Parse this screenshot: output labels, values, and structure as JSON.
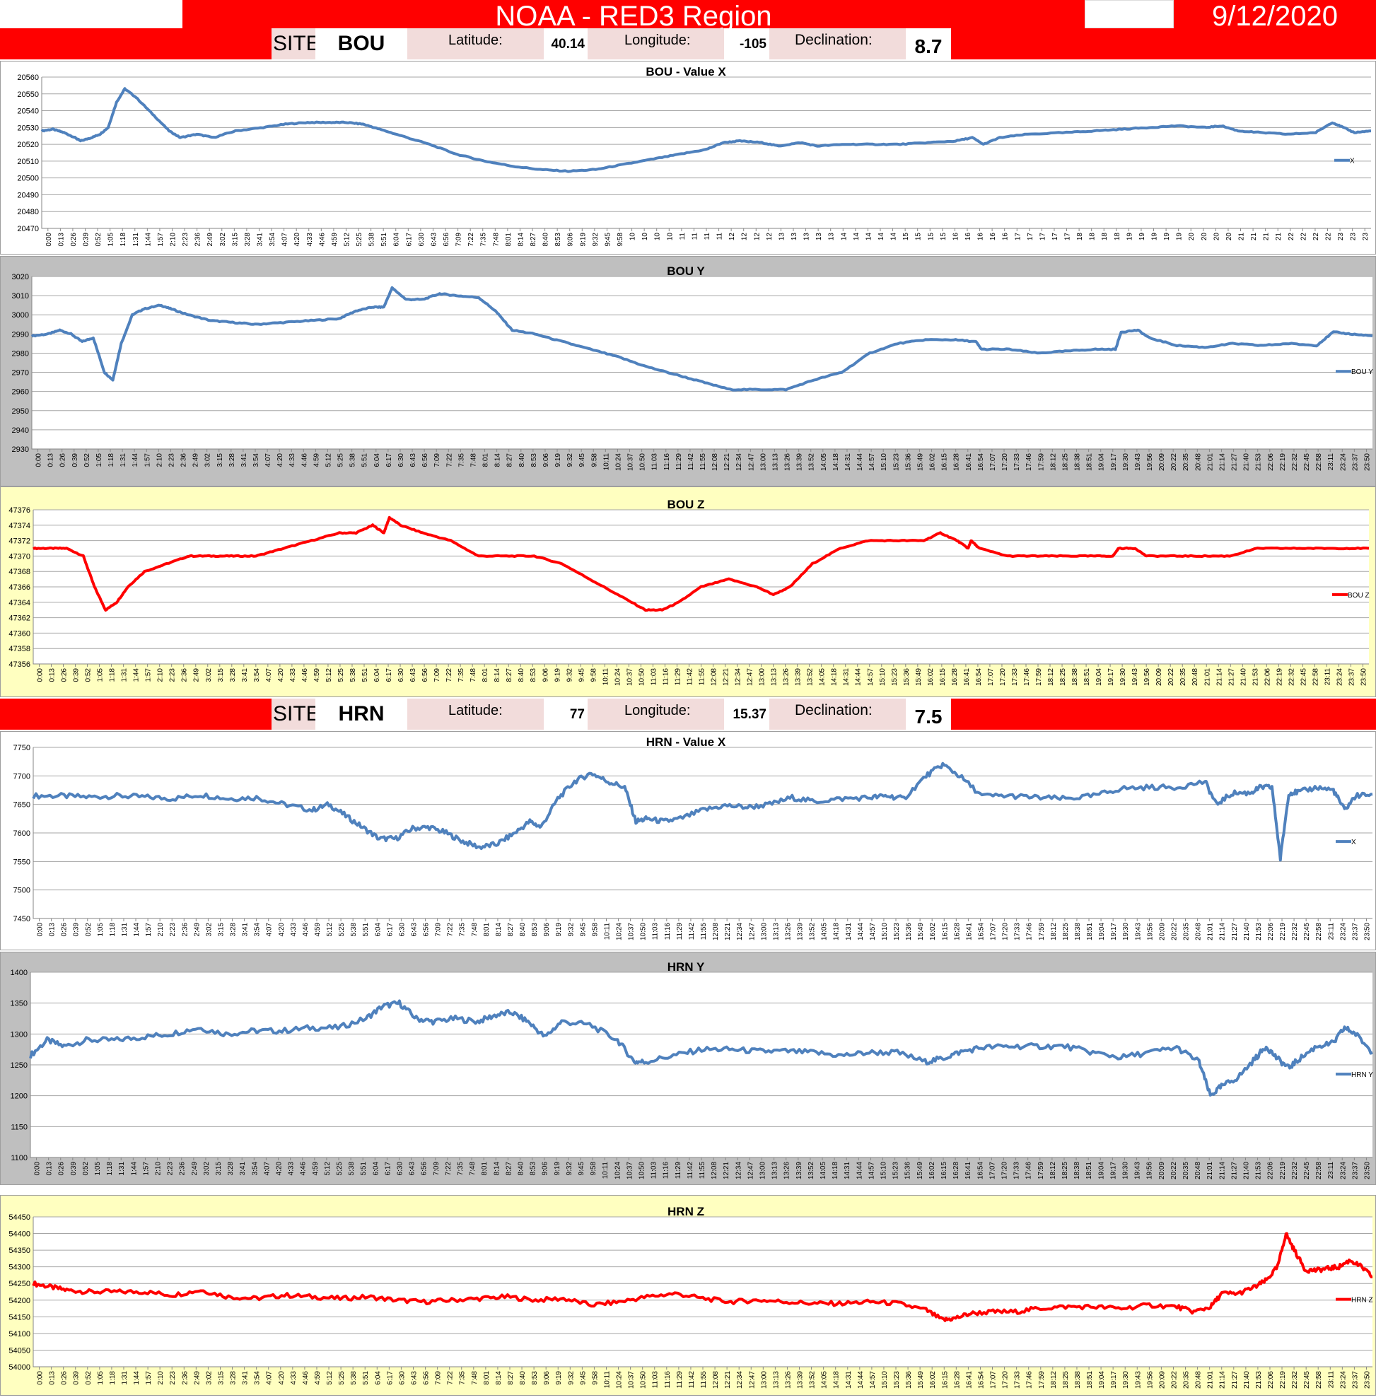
{
  "header": {
    "title": "NOAA - RED3 Region",
    "date": "9/12/2020"
  },
  "sites": [
    {
      "site_label": "SITE:",
      "site": "BOU",
      "lat_label": "Latitude:",
      "lat": "40.14",
      "lon_label": "Longitude:",
      "lon": "-105",
      "dec_label": "Declination:",
      "dec": "8.7"
    },
    {
      "site_label": "SITE:",
      "site": "HRN",
      "lat_label": "Latitude:",
      "lat": "77",
      "lon_label": "Longitude:",
      "lon": "15.37",
      "dec_label": "Declination:",
      "dec": "7.5"
    }
  ],
  "colors": {
    "blue": "#4f81bd",
    "red": "#ff0000",
    "header_red": "#ff0000",
    "yellow_bg": "#ffffc0",
    "gray_bg": "#bfbfbf"
  },
  "x_ticks_a": [
    "0:00",
    "0:13",
    "0:26",
    "0:39",
    "0:52",
    "1:05",
    "1:18",
    "1:31",
    "1:44",
    "1:57",
    "2:10",
    "2:23",
    "2:36",
    "2:49",
    "3:02",
    "3:15",
    "3:28",
    "3:41",
    "3:54",
    "4:07",
    "4:20",
    "4:33",
    "4:46",
    "4:59",
    "5:12",
    "5:25",
    "5:38",
    "5:51",
    "6:04",
    "6:17",
    "6:30",
    "6:43",
    "6:56",
    "7:09",
    "7:22",
    "7:35",
    "7:48",
    "8:01",
    "8:14",
    "8:27",
    "8:40",
    "8:53",
    "9:06",
    "9:19",
    "9:32",
    "9:45",
    "9:58",
    "10:11",
    "10:24",
    "10:37",
    "10:50",
    "11:03",
    "11:16",
    "11:29",
    "11:42",
    "11:55",
    "12:08",
    "12:21",
    "12:34",
    "12:47",
    "13:00",
    "13:13",
    "13:26",
    "13:39",
    "13:52",
    "14:05",
    "14:18",
    "14:31",
    "14:44",
    "14:57",
    "15:10",
    "15:23",
    "15:36",
    "15:49",
    "16:02",
    "16:15",
    "16:28",
    "16:41",
    "16:54",
    "17:07",
    "17:20",
    "17:33",
    "17:46",
    "17:59",
    "18:12",
    "18:25",
    "18:38",
    "18:51",
    "19:04",
    "19:17",
    "19:30",
    "19:43",
    "19:56",
    "20:09",
    "20:22",
    "20:35",
    "20:48",
    "21:01",
    "21:14",
    "21:27",
    "21:40",
    "21:53",
    "22:06",
    "22:19",
    "22:32",
    "22:45",
    "22:58",
    "23:11",
    "23:24",
    "23:37",
    "23:50"
  ],
  "x_ticks_bouX": [
    "0:00",
    "0:13",
    "0:26",
    "0:39",
    "0:52",
    "1:05",
    "1:18",
    "1:31",
    "1:44",
    "1:57",
    "2:10",
    "2:23",
    "2:36",
    "2:49",
    "3:02",
    "3:15",
    "3:28",
    "3:41",
    "3:54",
    "4:07",
    "4:20",
    "4:33",
    "4:46",
    "4:59",
    "5:12",
    "5:25",
    "5:38",
    "5:51",
    "6:04",
    "6:17",
    "6:30",
    "6:43",
    "6:56",
    "7:09",
    "7:22",
    "7:35",
    "7:48",
    "8:01",
    "8:14",
    "8:27",
    "8:40",
    "8:53",
    "9:06",
    "9:19",
    "9:32",
    "9:45",
    "9:58",
    "10",
    "10",
    "10",
    "10",
    "11",
    "11",
    "11",
    "11",
    "12",
    "12",
    "12",
    "12",
    "13",
    "13",
    "13",
    "13",
    "13",
    "14",
    "14",
    "14",
    "14",
    "14",
    "15",
    "15",
    "15",
    "15",
    "16",
    "16",
    "16",
    "16",
    "16",
    "17",
    "17",
    "17",
    "17",
    "17",
    "18",
    "18",
    "18",
    "18",
    "19",
    "19",
    "19",
    "19",
    "19",
    "20",
    "20",
    "20",
    "20",
    "21",
    "21",
    "21",
    "21",
    "22",
    "22",
    "22",
    "22",
    "23",
    "23",
    "23"
  ],
  "chart_data": [
    {
      "type": "line",
      "title": "BOU - Value X",
      "ylim": [
        20470,
        20560
      ],
      "yticks": [
        20470,
        20480,
        20490,
        20500,
        20510,
        20520,
        20530,
        20540,
        20550,
        20560
      ],
      "series": [
        {
          "name": "X",
          "color": "#4f81bd",
          "x": [
            0,
            0.2,
            0.4,
            0.6,
            0.7,
            0.9,
            1.05,
            1.2,
            1.35,
            1.5,
            1.7,
            2.0,
            2.3,
            2.5,
            2.8,
            3.1,
            3.5,
            4.0,
            4.4,
            4.8,
            5.2,
            5.5,
            5.8,
            6.1,
            6.5,
            7.0,
            7.5,
            8.0,
            8.5,
            9.0,
            9.5,
            10.0,
            10.5,
            11.0,
            11.5,
            12.0,
            12.3,
            12.6,
            13.0,
            13.3,
            13.7,
            14.0,
            14.5,
            15.0,
            15.5,
            16.0,
            16.5,
            16.8,
            17.0,
            17.3,
            17.8,
            18.5,
            19.0,
            19.5,
            20.0,
            20.5,
            21.0,
            21.3,
            21.6,
            22.0,
            22.5,
            23.0,
            23.3,
            23.5,
            23.7,
            24.0
          ],
          "y": [
            20528,
            20529,
            20527,
            20524,
            20522,
            20524,
            20526,
            20530,
            20545,
            20553,
            20548,
            20538,
            20528,
            20524,
            20526,
            20524,
            20528,
            20530,
            20532,
            20533,
            20533,
            20533,
            20532,
            20529,
            20525,
            20520,
            20514,
            20510,
            20507,
            20505,
            20504,
            20505,
            20508,
            20511,
            20514,
            20517,
            20521,
            20522,
            20521,
            20519,
            20521,
            20519,
            20520,
            20520,
            20520,
            20521,
            20522,
            20524,
            20520,
            20524,
            20526,
            20527,
            20528,
            20529,
            20530,
            20531,
            20530,
            20531,
            20528,
            20527,
            20526,
            20527,
            20533,
            20530,
            20527,
            20528
          ]
        }
      ]
    },
    {
      "type": "line",
      "title": "BOU Y",
      "ylim": [
        2930,
        3020
      ],
      "yticks": [
        2930,
        2940,
        2950,
        2960,
        2970,
        2980,
        2990,
        3000,
        3010,
        3020
      ],
      "series": [
        {
          "name": "BOU Y",
          "color": "#4f81bd",
          "x": [
            0,
            0.3,
            0.5,
            0.7,
            0.9,
            1.1,
            1.3,
            1.45,
            1.6,
            1.8,
            2.0,
            2.3,
            2.5,
            2.8,
            3.2,
            3.6,
            4.0,
            4.5,
            5.0,
            5.5,
            5.8,
            6.1,
            6.3,
            6.45,
            6.7,
            7.0,
            7.3,
            7.6,
            8.0,
            8.3,
            8.6,
            9.0,
            9.5,
            10.0,
            10.5,
            11.0,
            11.5,
            12.0,
            12.5,
            13.0,
            13.5,
            14.0,
            14.5,
            15.0,
            15.5,
            16.0,
            16.5,
            16.9,
            17.0,
            17.5,
            18.0,
            18.5,
            19.0,
            19.4,
            19.5,
            19.8,
            20.0,
            20.5,
            21.0,
            21.5,
            22.0,
            22.5,
            23.0,
            23.3,
            23.6,
            24.0
          ],
          "y": [
            2989,
            2990,
            2992,
            2990,
            2986,
            2988,
            2970,
            2966,
            2985,
            3000,
            3003,
            3005,
            3003,
            3000,
            2997,
            2996,
            2995,
            2996,
            2997,
            2998,
            3002,
            3004,
            3004,
            3014,
            3008,
            3008,
            3011,
            3010,
            3009,
            3002,
            2992,
            2990,
            2986,
            2982,
            2978,
            2973,
            2969,
            2965,
            2961,
            2961,
            2961,
            2966,
            2970,
            2980,
            2985,
            2987,
            2987,
            2986,
            2982,
            2982,
            2980,
            2981,
            2982,
            2982,
            2991,
            2992,
            2988,
            2984,
            2983,
            2985,
            2984,
            2985,
            2984,
            2991,
            2990,
            2989
          ]
        }
      ]
    },
    {
      "type": "line",
      "title": "BOU Z",
      "ylim": [
        47356,
        47376
      ],
      "yticks": [
        47356,
        47358,
        47360,
        47362,
        47364,
        47366,
        47368,
        47370,
        47372,
        47374,
        47376
      ],
      "series": [
        {
          "name": "BOU Z",
          "color": "#ff0000",
          "x": [
            0,
            0.3,
            0.6,
            0.9,
            1.1,
            1.3,
            1.5,
            1.7,
            2.0,
            2.4,
            2.8,
            3.2,
            3.6,
            4.0,
            4.5,
            5.0,
            5.5,
            5.8,
            6.1,
            6.3,
            6.4,
            6.6,
            7.0,
            7.5,
            8.0,
            8.5,
            9.0,
            9.5,
            10.0,
            10.5,
            11.0,
            11.3,
            11.6,
            12.0,
            12.5,
            13.0,
            13.3,
            13.6,
            14.0,
            14.5,
            15.0,
            15.5,
            16.0,
            16.3,
            16.6,
            16.8,
            16.85,
            17.0,
            17.5,
            18.0,
            18.5,
            19.0,
            19.4,
            19.5,
            19.8,
            20.0,
            20.5,
            21.0,
            21.5,
            22.0,
            22.5,
            23.0,
            23.5,
            24.0
          ],
          "y": [
            47371,
            47371,
            47371,
            47370,
            47366,
            47363,
            47364,
            47366,
            47368,
            47369,
            47370,
            47370,
            47370,
            47370,
            47371,
            47372,
            47373,
            47373,
            47374,
            47373,
            47375,
            47374,
            47373,
            47372,
            47370,
            47370,
            47370,
            47369,
            47367,
            47365,
            47363,
            47363,
            47364,
            47366,
            47367,
            47366,
            47365,
            47366,
            47369,
            47371,
            47372,
            47372,
            47372,
            47373,
            47372,
            47371,
            47372,
            47371,
            47370,
            47370,
            47370,
            47370,
            47370,
            47371,
            47371,
            47370,
            47370,
            47370,
            47370,
            47371,
            47371,
            47371,
            47371,
            47371
          ]
        }
      ]
    },
    {
      "type": "line",
      "title": "HRN - Value X",
      "ylim": [
        7450,
        7750
      ],
      "yticks": [
        7450,
        7500,
        7550,
        7600,
        7650,
        7700,
        7750
      ],
      "series": [
        {
          "name": "X",
          "color": "#4f81bd",
          "x": [
            0,
            0.5,
            1.0,
            1.5,
            2.0,
            2.5,
            3.0,
            3.5,
            4.0,
            4.5,
            5.0,
            5.3,
            5.6,
            5.9,
            6.2,
            6.5,
            6.8,
            7.1,
            7.4,
            7.7,
            8.0,
            8.3,
            8.6,
            8.9,
            9.1,
            9.4,
            9.7,
            10.0,
            10.3,
            10.6,
            10.8,
            11.0,
            11.3,
            11.6,
            12.0,
            12.4,
            12.8,
            13.2,
            13.6,
            14.0,
            14.5,
            15.0,
            15.3,
            15.6,
            16.0,
            16.3,
            16.6,
            17.0,
            17.5,
            18.0,
            18.5,
            19.0,
            19.5,
            20.0,
            20.5,
            21.0,
            21.2,
            21.5,
            21.8,
            22.0,
            22.2,
            22.35,
            22.5,
            22.7,
            23.0,
            23.3,
            23.5,
            23.7,
            24.0
          ],
          "y": [
            7665,
            7665,
            7663,
            7665,
            7663,
            7660,
            7667,
            7660,
            7662,
            7650,
            7640,
            7650,
            7630,
            7610,
            7590,
            7590,
            7608,
            7610,
            7600,
            7585,
            7575,
            7580,
            7598,
            7620,
            7610,
            7660,
            7690,
            7705,
            7690,
            7680,
            7620,
            7625,
            7620,
            7625,
            7640,
            7648,
            7645,
            7650,
            7662,
            7655,
            7660,
            7662,
            7665,
            7660,
            7700,
            7720,
            7700,
            7665,
            7665,
            7662,
            7660,
            7665,
            7678,
            7680,
            7680,
            7690,
            7650,
            7670,
            7670,
            7680,
            7680,
            7555,
            7670,
            7672,
            7680,
            7675,
            7640,
            7665,
            7668
          ]
        }
      ]
    },
    {
      "type": "line",
      "title": "HRN Y",
      "ylim": [
        1100,
        1400
      ],
      "yticks": [
        1100,
        1150,
        1200,
        1250,
        1300,
        1350,
        1400
      ],
      "series": [
        {
          "name": "HRN Y",
          "color": "#4f81bd",
          "x": [
            0,
            0.3,
            0.6,
            1.0,
            1.5,
            2.0,
            2.5,
            3.0,
            3.5,
            4.0,
            4.5,
            5.0,
            5.5,
            6.0,
            6.3,
            6.6,
            6.9,
            7.2,
            7.6,
            8.0,
            8.3,
            8.6,
            8.9,
            9.2,
            9.5,
            10.0,
            10.5,
            10.8,
            11.0,
            11.5,
            12.0,
            12.5,
            13.0,
            13.5,
            14.0,
            14.5,
            15.0,
            15.5,
            16.0,
            16.3,
            16.6,
            17.0,
            17.5,
            18.0,
            18.5,
            19.0,
            19.5,
            20.0,
            20.5,
            20.9,
            21.1,
            21.3,
            21.6,
            21.9,
            22.1,
            22.3,
            22.5,
            22.7,
            23.0,
            23.3,
            23.5,
            23.7,
            24.0
          ],
          "y": [
            1265,
            1290,
            1280,
            1290,
            1290,
            1295,
            1300,
            1310,
            1300,
            1305,
            1305,
            1310,
            1310,
            1325,
            1345,
            1350,
            1325,
            1320,
            1325,
            1320,
            1330,
            1335,
            1320,
            1295,
            1320,
            1315,
            1290,
            1255,
            1255,
            1265,
            1275,
            1275,
            1272,
            1272,
            1270,
            1265,
            1270,
            1270,
            1255,
            1260,
            1270,
            1278,
            1280,
            1280,
            1280,
            1270,
            1262,
            1270,
            1278,
            1255,
            1200,
            1215,
            1230,
            1260,
            1280,
            1260,
            1245,
            1260,
            1280,
            1285,
            1310,
            1300,
            1270
          ]
        }
      ]
    },
    {
      "type": "line",
      "title": "HRN Z",
      "ylim": [
        54000,
        54450
      ],
      "yticks": [
        54000,
        54050,
        54100,
        54150,
        54200,
        54250,
        54300,
        54350,
        54400,
        54450
      ],
      "series": [
        {
          "name": "HRN Z",
          "color": "#ff0000",
          "x": [
            0,
            0.3,
            0.6,
            1.0,
            1.5,
            2.0,
            2.5,
            3.0,
            3.5,
            4.0,
            4.5,
            5.0,
            5.5,
            6.0,
            6.5,
            7.0,
            7.5,
            8.0,
            8.5,
            9.0,
            9.5,
            10.0,
            10.5,
            11.0,
            11.5,
            12.0,
            12.5,
            13.0,
            13.5,
            14.0,
            14.5,
            15.0,
            15.5,
            16.0,
            16.3,
            16.5,
            16.8,
            17.2,
            17.6,
            18.0,
            18.5,
            19.0,
            19.5,
            20.0,
            20.5,
            20.8,
            21.1,
            21.3,
            21.6,
            21.9,
            22.1,
            22.3,
            22.45,
            22.6,
            22.8,
            23.0,
            23.2,
            23.4,
            23.6,
            23.8,
            24.0
          ],
          "y": [
            54250,
            54240,
            54230,
            54225,
            54225,
            54225,
            54215,
            54230,
            54210,
            54205,
            54215,
            54210,
            54205,
            54210,
            54200,
            54195,
            54200,
            54205,
            54210,
            54200,
            54205,
            54185,
            54195,
            54210,
            54220,
            54205,
            54195,
            54200,
            54195,
            54190,
            54190,
            54195,
            54190,
            54170,
            54140,
            54145,
            54160,
            54165,
            54165,
            54175,
            54180,
            54180,
            54175,
            54185,
            54180,
            54165,
            54180,
            54220,
            54220,
            54240,
            54260,
            54300,
            54400,
            54350,
            54290,
            54290,
            54295,
            54300,
            54320,
            54300,
            54270
          ]
        }
      ]
    }
  ]
}
